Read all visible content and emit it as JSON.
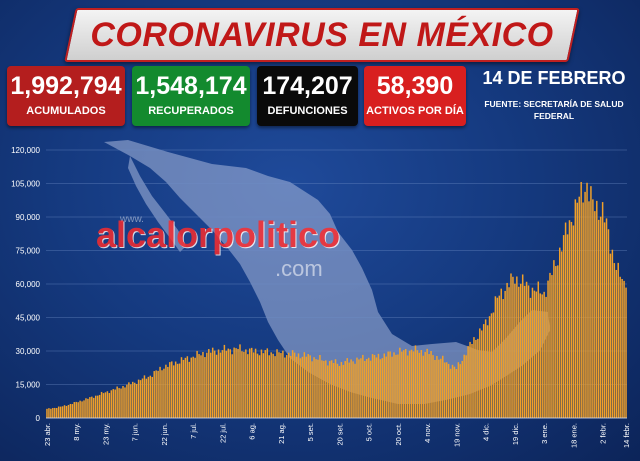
{
  "title": "CORONAVIRUS EN MÉXICO",
  "stats": [
    {
      "key": "acumulados",
      "value": "1,992,794",
      "label": "ACUMULADOS",
      "color": "#b41e1e"
    },
    {
      "key": "recuperados",
      "value": "1,548,174",
      "label": "RECUPERADOS",
      "color": "#138a2e"
    },
    {
      "key": "defunciones",
      "value": "174,207",
      "label": "DEFUNCIONES",
      "color": "#0a0a0a"
    },
    {
      "key": "activos",
      "value": "58,390",
      "label": "ACTIVOS POR DÍA",
      "color": "#d81f1f"
    }
  ],
  "date": "14 DE FEBRERO",
  "source": "FUENTE: SECRETARÍA DE SALUD FEDERAL",
  "watermark": {
    "prefix": "www.",
    "brand": "alcalorpolitico",
    "suffix": ".com",
    "registered": "®"
  },
  "colors": {
    "bar": "#f0a02a",
    "grid": "#6f8fc8",
    "axis_text": "#ffffff",
    "map": "#a9b8dc"
  },
  "chart_data": {
    "type": "bar",
    "title": "",
    "xlabel": "",
    "ylabel": "",
    "ylim": [
      0,
      120000
    ],
    "yticks": [
      0,
      15000,
      30000,
      45000,
      60000,
      75000,
      90000,
      105000,
      120000
    ],
    "ytick_labels": [
      "0",
      "15,000",
      "30,000",
      "45,000",
      "60,000",
      "75,000",
      "90,000",
      "105,000",
      "120,000"
    ],
    "x_start": "2020-04-23",
    "x_end": "2021-02-14",
    "xtick_labels": [
      "23 abr.",
      "8 my.",
      "23 my.",
      "7 jun.",
      "22 jun.",
      "7 jul.",
      "22 jul.",
      "6 ag.",
      "21 ag.",
      "5 set.",
      "20 set.",
      "5 oct.",
      "20 oct.",
      "4 nov.",
      "19 nov.",
      "4 dic.",
      "19 dic.",
      "3 ene.",
      "18 ene.",
      "2 febr.",
      "14 febr."
    ],
    "anchors": [
      [
        "2020-04-23",
        4000
      ],
      [
        "2020-05-01",
        5200
      ],
      [
        "2020-05-08",
        7000
      ],
      [
        "2020-05-15",
        9000
      ],
      [
        "2020-05-23",
        11500
      ],
      [
        "2020-05-30",
        13500
      ],
      [
        "2020-06-07",
        16000
      ],
      [
        "2020-06-15",
        19000
      ],
      [
        "2020-06-22",
        23000
      ],
      [
        "2020-06-30",
        25500
      ],
      [
        "2020-07-07",
        27500
      ],
      [
        "2020-07-14",
        29500
      ],
      [
        "2020-07-22",
        30500
      ],
      [
        "2020-07-30",
        31000
      ],
      [
        "2020-08-06",
        30000
      ],
      [
        "2020-08-14",
        29500
      ],
      [
        "2020-08-21",
        29000
      ],
      [
        "2020-08-29",
        28500
      ],
      [
        "2020-09-05",
        27500
      ],
      [
        "2020-09-13",
        25500
      ],
      [
        "2020-09-20",
        24500
      ],
      [
        "2020-09-28",
        26000
      ],
      [
        "2020-10-05",
        27000
      ],
      [
        "2020-10-13",
        28000
      ],
      [
        "2020-10-20",
        29500
      ],
      [
        "2020-10-28",
        30500
      ],
      [
        "2020-11-04",
        29500
      ],
      [
        "2020-11-12",
        26000
      ],
      [
        "2020-11-19",
        22000
      ],
      [
        "2020-11-23",
        28000
      ],
      [
        "2020-11-27",
        34000
      ],
      [
        "2020-12-04",
        42000
      ],
      [
        "2020-12-11",
        55000
      ],
      [
        "2020-12-19",
        63000
      ],
      [
        "2020-12-27",
        58000
      ],
      [
        "2021-01-03",
        56000
      ],
      [
        "2021-01-08",
        67000
      ],
      [
        "2021-01-13",
        80000
      ],
      [
        "2021-01-18",
        92000
      ],
      [
        "2021-01-22",
        100000
      ],
      [
        "2021-01-25",
        105000
      ],
      [
        "2021-01-28",
        95000
      ],
      [
        "2021-02-02",
        93000
      ],
      [
        "2021-02-06",
        78000
      ],
      [
        "2021-02-10",
        65000
      ],
      [
        "2021-02-14",
        58390
      ]
    ]
  }
}
